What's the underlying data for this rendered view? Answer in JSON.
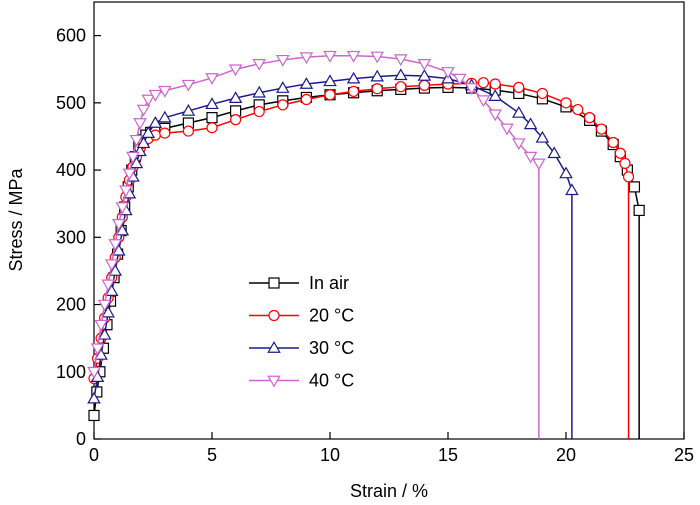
{
  "chart_data": {
    "type": "line",
    "title": "",
    "xlabel": "Strain / %",
    "ylabel": "Stress / MPa",
    "xlim": [
      0,
      25
    ],
    "ylim": [
      0,
      650
    ],
    "xticks": [
      0,
      5,
      10,
      15,
      20,
      25
    ],
    "yticks": [
      0,
      100,
      200,
      300,
      400,
      500,
      600
    ],
    "grid": false,
    "legend_position": "center-left",
    "series": [
      {
        "name": "In air",
        "color": "#000000",
        "marker": "square",
        "x": [
          0.0,
          0.12,
          0.25,
          0.4,
          0.55,
          0.7,
          0.85,
          1.0,
          1.15,
          1.3,
          1.45,
          1.6,
          1.75,
          1.9,
          2.05,
          2.2,
          2.4,
          2.6,
          3.0,
          4.0,
          5.0,
          6.0,
          7.0,
          8.0,
          9.0,
          10.0,
          11.0,
          12.0,
          13.0,
          14.0,
          15.0,
          16.0,
          17.0,
          18.0,
          19.0,
          20.0,
          21.0,
          21.5,
          22.0,
          22.3,
          22.6,
          22.9,
          23.1,
          23.1
        ],
        "y": [
          35,
          70,
          100,
          135,
          170,
          205,
          240,
          275,
          310,
          345,
          375,
          400,
          420,
          435,
          445,
          452,
          456,
          458,
          462,
          470,
          478,
          488,
          497,
          503,
          508,
          512,
          515,
          518,
          520,
          522,
          523,
          522,
          519,
          514,
          506,
          494,
          474,
          458,
          438,
          420,
          400,
          375,
          340,
          0
        ]
      },
      {
        "name": "20 °C",
        "color": "#ff0000",
        "marker": "circle",
        "x": [
          0.0,
          0.15,
          0.3,
          0.45,
          0.6,
          0.75,
          0.9,
          1.05,
          1.2,
          1.35,
          1.5,
          1.65,
          1.8,
          1.95,
          2.1,
          2.3,
          2.6,
          3.0,
          4.0,
          5.0,
          6.0,
          7.0,
          8.0,
          9.0,
          10.0,
          11.0,
          12.0,
          13.0,
          14.0,
          15.0,
          16.0,
          16.5,
          17.0,
          18.0,
          19.0,
          20.0,
          20.5,
          21.0,
          21.5,
          22.0,
          22.3,
          22.5,
          22.65,
          22.65
        ],
        "y": [
          90,
          120,
          150,
          180,
          210,
          240,
          270,
          300,
          330,
          360,
          385,
          405,
          420,
          432,
          440,
          447,
          452,
          455,
          458,
          463,
          475,
          487,
          497,
          505,
          512,
          517,
          521,
          524,
          526,
          528,
          529,
          530,
          528,
          523,
          514,
          500,
          490,
          478,
          461,
          441,
          425,
          410,
          390,
          0
        ]
      },
      {
        "name": "30 °C",
        "color": "#1a1a8c",
        "marker": "triangle-up",
        "x": [
          0.0,
          0.15,
          0.3,
          0.45,
          0.6,
          0.75,
          0.9,
          1.05,
          1.2,
          1.35,
          1.5,
          1.65,
          1.8,
          1.95,
          2.1,
          2.3,
          2.6,
          3.0,
          4.0,
          5.0,
          6.0,
          7.0,
          8.0,
          9.0,
          10.0,
          11.0,
          12.0,
          13.0,
          14.0,
          15.0,
          16.0,
          17.0,
          18.0,
          18.5,
          19.0,
          19.5,
          20.0,
          20.25,
          20.25
        ],
        "y": [
          60,
          92,
          125,
          155,
          188,
          220,
          250,
          280,
          310,
          340,
          365,
          390,
          410,
          428,
          440,
          455,
          470,
          478,
          488,
          498,
          507,
          515,
          522,
          528,
          532,
          536,
          539,
          541,
          540,
          536,
          526,
          510,
          485,
          468,
          448,
          425,
          395,
          370,
          0
        ]
      },
      {
        "name": "40 °C",
        "color": "#cc66cc",
        "marker": "triangle-down",
        "x": [
          0.0,
          0.15,
          0.3,
          0.45,
          0.6,
          0.75,
          0.9,
          1.05,
          1.2,
          1.35,
          1.5,
          1.65,
          1.8,
          1.95,
          2.1,
          2.3,
          2.6,
          3.0,
          4.0,
          5.0,
          6.0,
          7.0,
          8.0,
          9.0,
          10.0,
          11.0,
          12.0,
          13.0,
          14.0,
          15.0,
          15.5,
          16.0,
          16.5,
          17.0,
          17.5,
          18.0,
          18.5,
          18.85,
          18.85
        ],
        "y": [
          100,
          135,
          170,
          200,
          230,
          260,
          290,
          320,
          345,
          370,
          395,
          420,
          445,
          470,
          490,
          505,
          512,
          518,
          527,
          537,
          550,
          558,
          564,
          568,
          570,
          570,
          569,
          565,
          558,
          546,
          536,
          522,
          504,
          483,
          462,
          440,
          420,
          410,
          0
        ]
      }
    ]
  }
}
